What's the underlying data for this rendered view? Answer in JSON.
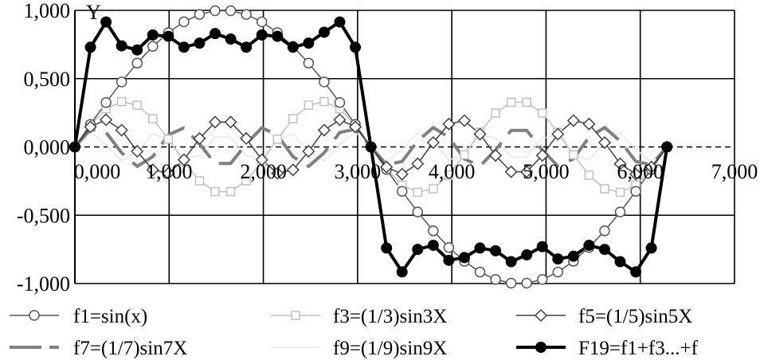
{
  "chart_data": {
    "type": "line",
    "title": "",
    "xlabel": "",
    "ylabel": "Y",
    "xlim": [
      0,
      7
    ],
    "ylim": [
      -1,
      1
    ],
    "x_ticks": [
      "0,000",
      "1,000",
      "2,000",
      "3,000",
      "4,000",
      "5,000",
      "6,000",
      "7,000"
    ],
    "y_ticks": [
      "1,000",
      "0,500",
      "0,000",
      "-0,500",
      "-1,000"
    ],
    "x_tick_values": [
      0,
      1,
      2,
      3,
      4,
      5,
      6,
      7
    ],
    "y_tick_values": [
      1,
      0.5,
      0,
      -0.5,
      -1
    ],
    "grid": true,
    "legend_position": "bottom",
    "x": [
      0,
      0.1653,
      0.3307,
      0.496,
      0.6614,
      0.8267,
      0.992,
      1.1574,
      1.3227,
      1.4881,
      1.6534,
      1.8188,
      1.9841,
      2.1494,
      2.3148,
      2.4801,
      2.6455,
      2.8108,
      2.9762,
      3.1415,
      3.3069,
      3.4722,
      3.6376,
      3.8029,
      3.9683,
      4.1336,
      4.2989,
      4.4643,
      4.6296,
      4.795,
      4.9603,
      5.1257,
      5.291,
      5.4563,
      5.6217,
      5.787,
      5.9524,
      6.1177,
      6.2831
    ],
    "series": [
      {
        "name": "f1=sin(x)",
        "color": "#555555",
        "marker": "open-circle",
        "values": [
          0,
          0.165,
          0.325,
          0.476,
          0.614,
          0.736,
          0.837,
          0.916,
          0.97,
          0.997,
          0.997,
          0.97,
          0.916,
          0.837,
          0.736,
          0.614,
          0.476,
          0.325,
          0.165,
          0,
          -0.165,
          -0.325,
          -0.476,
          -0.614,
          -0.736,
          -0.837,
          -0.916,
          -0.97,
          -0.997,
          -0.997,
          -0.97,
          -0.916,
          -0.837,
          -0.736,
          -0.614,
          -0.476,
          -0.325,
          -0.165,
          0
        ]
      },
      {
        "name": "f3=(1/3)sin3X",
        "color": "#c0c0c0",
        "marker": "open-square",
        "values": [
          0,
          0.159,
          0.279,
          0.332,
          0.306,
          0.207,
          0.057,
          -0.108,
          -0.248,
          -0.327,
          -0.327,
          -0.248,
          -0.108,
          0.057,
          0.207,
          0.306,
          0.332,
          0.279,
          0.159,
          0,
          -0.159,
          -0.279,
          -0.332,
          -0.306,
          -0.207,
          -0.057,
          0.108,
          0.248,
          0.327,
          0.327,
          0.248,
          0.108,
          -0.057,
          -0.207,
          -0.306,
          -0.332,
          -0.279,
          -0.159,
          0
        ]
      },
      {
        "name": "f5=(1/5)sin5X",
        "color": "#404040",
        "marker": "open-diamond",
        "values": [
          0,
          0.147,
          0.199,
          0.123,
          -0.032,
          -0.168,
          -0.193,
          -0.094,
          0.062,
          0.182,
          0.182,
          0.062,
          -0.094,
          -0.193,
          -0.168,
          -0.032,
          0.123,
          0.199,
          0.147,
          0,
          -0.147,
          -0.199,
          -0.123,
          0.032,
          0.168,
          0.193,
          0.094,
          -0.062,
          -0.182,
          -0.182,
          -0.062,
          0.094,
          0.193,
          0.168,
          0.032,
          -0.123,
          -0.199,
          -0.147,
          0
        ]
      },
      {
        "name": "f7=(1/7)sin7X",
        "color": "#808080",
        "marker": "none",
        "dashed": true,
        "values": [
          0,
          0.13,
          0.106,
          -0.043,
          -0.142,
          -0.071,
          0.087,
          0.14,
          0.023,
          -0.121,
          -0.121,
          0.023,
          0.14,
          0.087,
          -0.071,
          -0.142,
          -0.043,
          0.106,
          0.13,
          0,
          -0.13,
          -0.106,
          0.043,
          0.142,
          0.071,
          -0.087,
          -0.14,
          -0.023,
          0.121,
          0.121,
          -0.023,
          -0.14,
          -0.087,
          0.071,
          0.142,
          0.043,
          -0.106,
          -0.13,
          0
        ]
      },
      {
        "name": "f9=(1/9)sin9X",
        "color": "#e8e8e8",
        "marker": "none",
        "values": [
          0,
          0.109,
          0.018,
          -0.104,
          -0.036,
          0.096,
          0.052,
          -0.085,
          -0.066,
          0.073,
          0.073,
          -0.066,
          -0.085,
          0.052,
          0.096,
          -0.036,
          -0.104,
          0.018,
          0.109,
          0,
          -0.109,
          -0.018,
          0.104,
          0.036,
          -0.096,
          -0.052,
          0.085,
          0.066,
          -0.073,
          -0.073,
          0.066,
          0.085,
          -0.052,
          -0.096,
          0.036,
          0.104,
          -0.018,
          -0.109,
          0
        ]
      },
      {
        "name": "F19=f1+f3...+f",
        "color": "#000000",
        "marker": "filled-circle",
        "values": [
          0,
          0.73,
          0.915,
          0.74,
          0.71,
          0.82,
          0.81,
          0.73,
          0.76,
          0.83,
          0.79,
          0.73,
          0.82,
          0.81,
          0.73,
          0.76,
          0.84,
          0.915,
          0.73,
          0,
          -0.74,
          -0.915,
          -0.75,
          -0.72,
          -0.83,
          -0.81,
          -0.74,
          -0.76,
          -0.84,
          -0.79,
          -0.73,
          -0.82,
          -0.8,
          -0.72,
          -0.75,
          -0.84,
          -0.915,
          -0.74,
          0
        ]
      }
    ]
  }
}
